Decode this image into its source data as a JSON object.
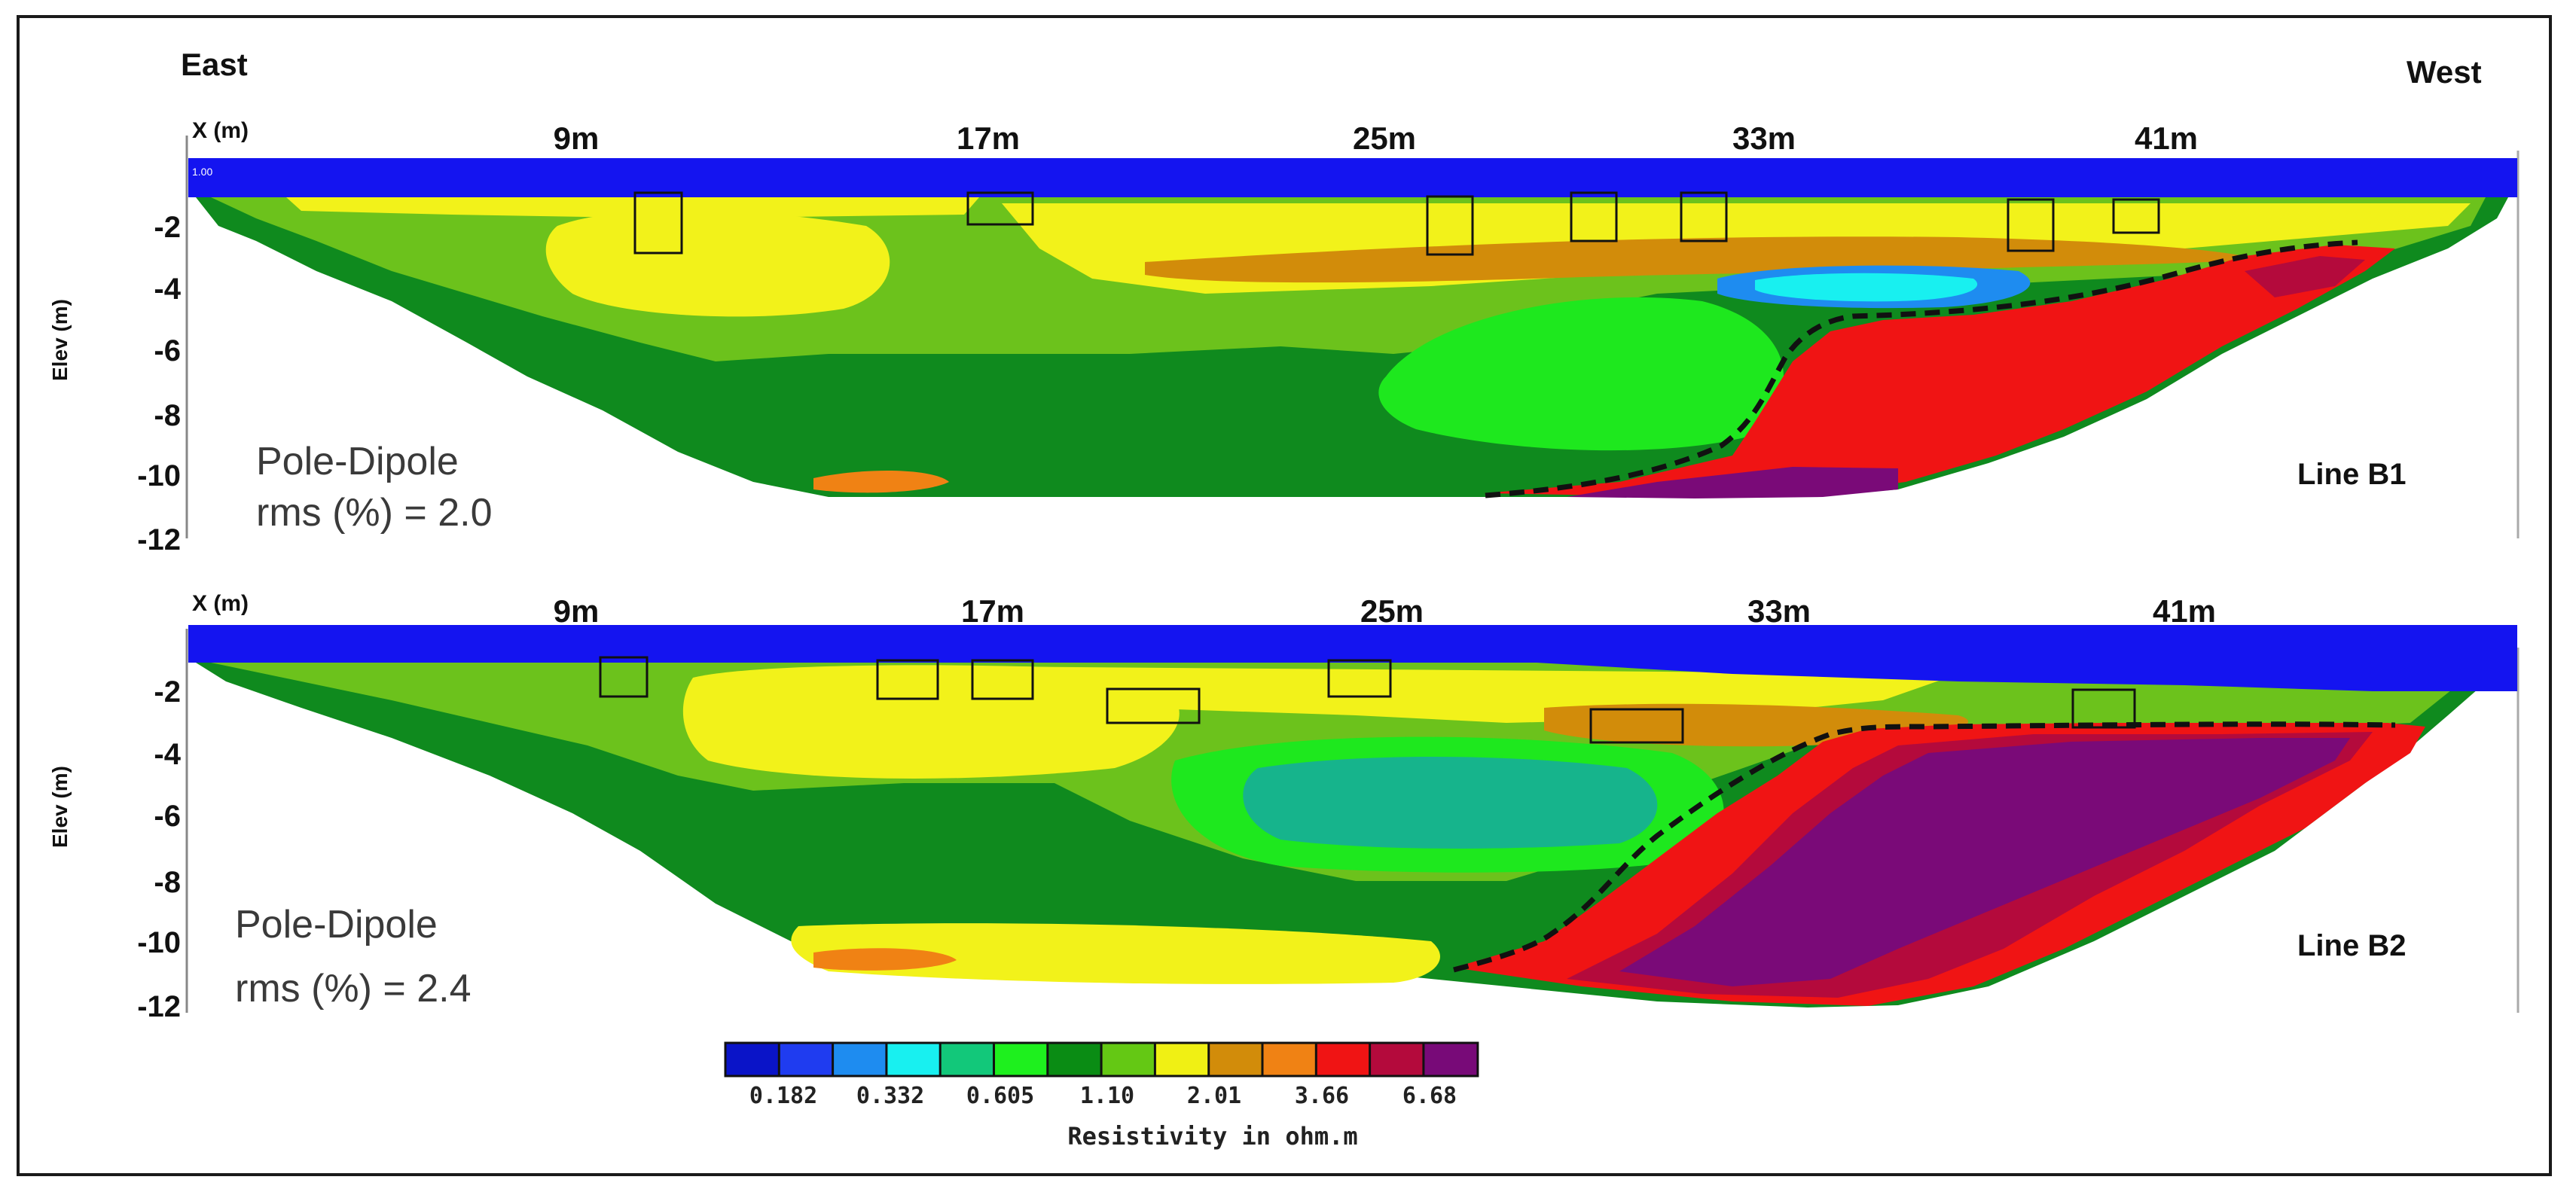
{
  "directions": {
    "left": "East",
    "right": "West"
  },
  "x_axis_label": "X (m)",
  "y_axis_label": "Elev (m)",
  "x_ticks": [
    "9m",
    "17m",
    "25m",
    "33m",
    "41m"
  ],
  "y_ticks": [
    "-2",
    "-4",
    "-6",
    "-8",
    "-10",
    "-12"
  ],
  "panels": [
    {
      "line": "Line B1",
      "method": "Pole-Dipole",
      "rms": "rms (%) = 2.0",
      "scale_marker": "1.00"
    },
    {
      "line": "Line B2",
      "method": "Pole-Dipole",
      "rms": "rms (%) = 2.4"
    }
  ],
  "colorbar": {
    "title": "Resistivity in ohm.m",
    "labels": [
      "0.182",
      "0.332",
      "0.605",
      "1.10",
      "2.01",
      "3.66",
      "6.68"
    ],
    "colors": [
      "#0a14c8",
      "#1f3cf0",
      "#1e8cf0",
      "#18f0f0",
      "#12c87a",
      "#1ef01e",
      "#0a8c14",
      "#64c814",
      "#f0f014",
      "#d28c0a",
      "#f08214",
      "#f01414",
      "#b40a3c",
      "#780a78"
    ]
  },
  "palette": {
    "water": "#1414f0",
    "dark_green": "#0f8a1e",
    "light_green": "#6cc21c",
    "bright_green": "#1ee81e",
    "teal": "#16b48c",
    "yellow": "#f2f21a",
    "dark_orange": "#d28c0a",
    "orange": "#f08214",
    "red": "#f01414",
    "crimson": "#b40a3c",
    "purple": "#7a0a78",
    "cyan": "#18f0f0",
    "blue": "#1e8cf0"
  }
}
